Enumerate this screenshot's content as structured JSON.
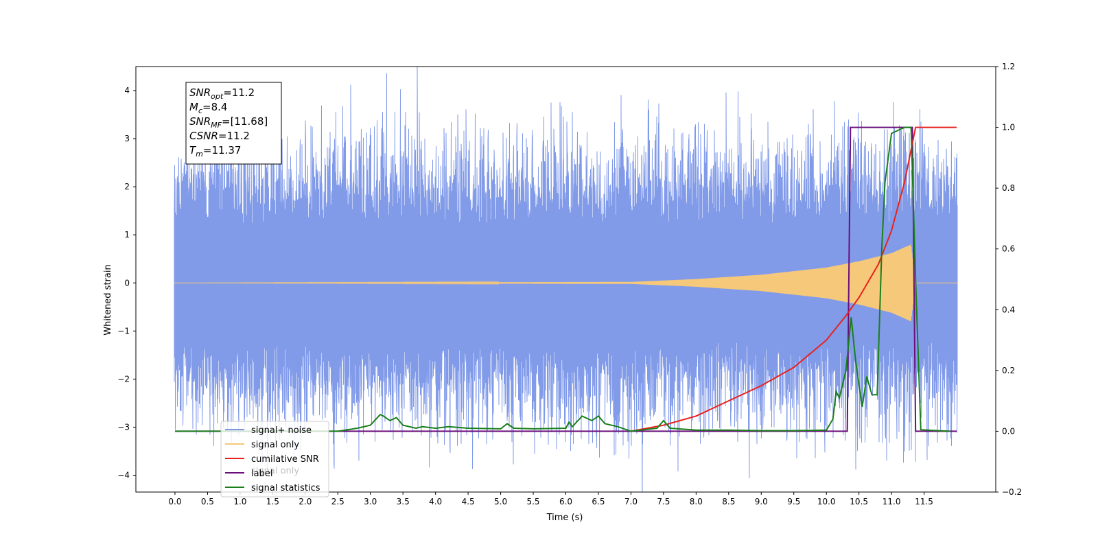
{
  "chart_data": {
    "type": "line",
    "xlabel": "Time (s)",
    "ylabel": "Whitened strain",
    "xlim": [
      -0.6,
      12.6
    ],
    "ylim": [
      -4.35,
      4.5
    ],
    "y2lim": [
      -0.2,
      1.2
    ],
    "x_ticks": [
      0.0,
      0.5,
      1.0,
      1.5,
      2.0,
      2.5,
      3.0,
      3.5,
      4.0,
      4.5,
      5.0,
      5.5,
      6.0,
      6.5,
      7.0,
      7.5,
      8.0,
      8.5,
      9.0,
      9.5,
      10.0,
      10.5,
      11.0,
      11.5
    ],
    "x_tick_labels": [
      "0.0",
      "0.5",
      "1.0",
      "1.5",
      "2.0",
      "2.5",
      "3.0",
      "3.5",
      "4.0",
      "4.5",
      "5.0",
      "5.5",
      "6.0",
      "6.5",
      "7.0",
      "7.5",
      "8.0",
      "8.5",
      "9.0",
      "9.5",
      "10.0",
      "10.5",
      "11.0",
      "11.5"
    ],
    "y_ticks": [
      -4,
      -3,
      -2,
      -1,
      0,
      1,
      2,
      3,
      4
    ],
    "y_tick_labels": [
      "−4",
      "−3",
      "−2",
      "−1",
      "0",
      "1",
      "2",
      "3",
      "4"
    ],
    "y2_ticks": [
      -0.2,
      0.0,
      0.2,
      0.4,
      0.6,
      0.8,
      1.0,
      1.2
    ],
    "y2_tick_labels": [
      "−0.2",
      "0.0",
      "0.2",
      "0.4",
      "0.6",
      "0.8",
      "1.0",
      "1.2"
    ],
    "grid": false,
    "legend_placement": "lower-left",
    "annotation": {
      "lines": [
        {
          "main": "SNR",
          "sub": "opt",
          "rest": "=11.2"
        },
        {
          "main": "M",
          "sub": "c",
          "rest": "=8.4"
        },
        {
          "main": "SNR",
          "sub": "MF",
          "rest": "=[11.68]"
        },
        {
          "main": "CSNR",
          "sub": "",
          "rest": "=11.2"
        },
        {
          "main": "T",
          "sub": "m",
          "rest": "=11.37"
        }
      ]
    },
    "series": [
      {
        "name": "signal+ noise",
        "axis": "left",
        "color": "#7b96e8",
        "kind": "noise_band",
        "x_range": [
          0.0,
          12.0
        ],
        "envelope_typical": 1.6,
        "notable_spikes": [
          [
            2.7,
            4.12
          ],
          [
            2.82,
            -3.7
          ],
          [
            5.52,
            -3.55
          ],
          [
            5.77,
            3.75
          ],
          [
            7.72,
            -3.92
          ],
          [
            9.55,
            -3.65
          ],
          [
            10.12,
            3.78
          ],
          [
            11.37,
            -3.72
          ],
          [
            6.95,
            -3.3
          ]
        ]
      },
      {
        "name": "signal only",
        "axis": "left",
        "color": "#f5c87a",
        "kind": "chirp",
        "onset": 7.0,
        "merger": 11.37,
        "values_at": [
          [
            0.0,
            0.0
          ],
          [
            7.0,
            0.02
          ],
          [
            8.0,
            0.08
          ],
          [
            9.0,
            0.17
          ],
          [
            10.0,
            0.32
          ],
          [
            10.5,
            0.45
          ],
          [
            11.0,
            0.62
          ],
          [
            11.3,
            0.8
          ],
          [
            11.37,
            0.0
          ],
          [
            12.0,
            0.0
          ]
        ]
      },
      {
        "name": "cumilative SNR",
        "axis": "right",
        "color": "#e8211c",
        "x": [
          7.0,
          7.5,
          8.0,
          8.5,
          9.0,
          9.5,
          10.0,
          10.3,
          10.5,
          10.8,
          11.0,
          11.2,
          11.37,
          11.5,
          12.0
        ],
        "values": [
          0.0,
          0.02,
          0.05,
          0.1,
          0.15,
          0.21,
          0.3,
          0.38,
          0.44,
          0.55,
          0.66,
          0.82,
          1.0,
          1.0,
          1.0
        ]
      },
      {
        "name": "label",
        "axis": "right",
        "color": "#6a0e7a",
        "x": [
          0.0,
          10.32,
          10.37,
          11.32,
          11.37,
          12.0
        ],
        "values": [
          0.0,
          0.0,
          1.0,
          1.0,
          0.0,
          0.0
        ]
      },
      {
        "name": "signal statistics",
        "axis": "right",
        "color": "#1a7f1a",
        "x": [
          0.0,
          2.0,
          2.5,
          2.8,
          3.0,
          3.15,
          3.2,
          3.3,
          3.4,
          3.5,
          3.7,
          3.8,
          4.0,
          4.2,
          4.5,
          5.0,
          5.1,
          5.2,
          5.5,
          6.0,
          6.05,
          6.1,
          6.25,
          6.4,
          6.5,
          6.6,
          6.8,
          7.0,
          7.2,
          7.4,
          7.5,
          7.6,
          8.0,
          8.5,
          9.0,
          9.5,
          10.0,
          10.1,
          10.15,
          10.2,
          10.3,
          10.38,
          10.45,
          10.55,
          10.62,
          10.7,
          10.78,
          10.85,
          10.9,
          11.0,
          11.2,
          11.3,
          11.37,
          11.45,
          11.9
        ],
        "values": [
          0.0,
          0.0,
          0.0,
          0.01,
          0.02,
          0.055,
          0.05,
          0.035,
          0.045,
          0.02,
          0.01,
          0.015,
          0.01,
          0.015,
          0.01,
          0.008,
          0.025,
          0.01,
          0.008,
          0.01,
          0.03,
          0.015,
          0.05,
          0.035,
          0.05,
          0.025,
          0.015,
          0.0,
          0.005,
          0.01,
          0.035,
          0.01,
          0.004,
          0.004,
          0.002,
          0.002,
          0.004,
          0.04,
          0.13,
          0.11,
          0.2,
          0.375,
          0.23,
          0.08,
          0.18,
          0.12,
          0.12,
          0.6,
          0.82,
          0.98,
          1.0,
          1.0,
          0.5,
          0.005,
          0.0
        ]
      }
    ],
    "legend_label_extra": "signal only"
  }
}
